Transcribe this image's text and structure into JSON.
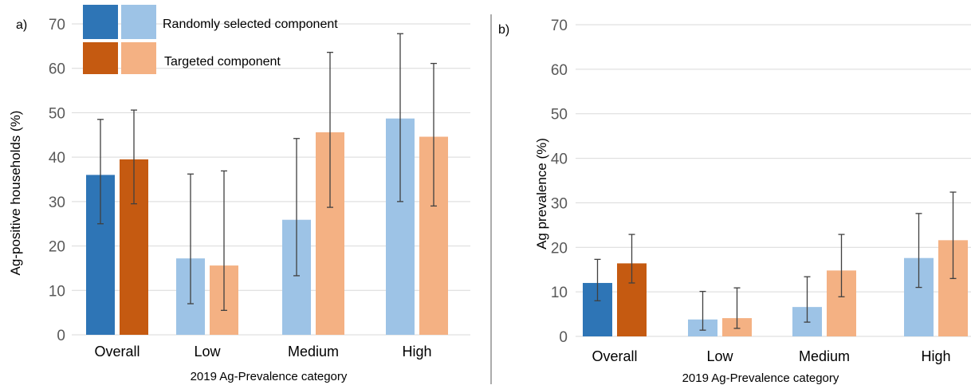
{
  "panels": [
    {
      "label": "a)"
    },
    {
      "label": "b)"
    }
  ],
  "legend": {
    "entries": [
      {
        "text": "Randomly selected component",
        "dark": "#2e75b6",
        "light": "#9dc3e6"
      },
      {
        "text": "Targeted component",
        "dark": "#c55a11",
        "light": "#f4b183"
      }
    ]
  },
  "colors": {
    "random_dark": "#2e75b6",
    "random_light": "#9dc3e6",
    "targeted_dark": "#c55a11",
    "targeted_light": "#f4b183",
    "grid": "#d9d9d9",
    "axis_text": "#595959",
    "error_bar": "#404040"
  },
  "chart_data": [
    {
      "type": "bar",
      "panel": "a)",
      "title": "",
      "xlabel": "2019 Ag-Prevalence category",
      "ylabel": "Ag-positive households (%)",
      "categories": [
        "Overall",
        "Low",
        "Medium",
        "High"
      ],
      "ylim": [
        0,
        70
      ],
      "yticks": [
        0,
        10,
        20,
        30,
        40,
        50,
        60,
        70
      ],
      "grid": true,
      "legend_position": "top-left",
      "series": [
        {
          "name": "Randomly selected component",
          "values": [
            36,
            17.2,
            25.9,
            48.7
          ],
          "err_low": [
            25,
            7,
            13.3,
            30
          ],
          "err_high": [
            48.5,
            36.2,
            44.2,
            67.8
          ]
        },
        {
          "name": "Targeted component",
          "values": [
            39.5,
            15.6,
            45.6,
            44.6
          ],
          "err_low": [
            29.5,
            5.5,
            28.7,
            29
          ],
          "err_high": [
            50.6,
            36.9,
            63.6,
            61.1
          ]
        }
      ]
    },
    {
      "type": "bar",
      "panel": "b)",
      "title": "",
      "xlabel": "2019 Ag-Prevalence category",
      "ylabel": "Ag prevalence (%)",
      "categories": [
        "Overall",
        "Low",
        "Medium",
        "High"
      ],
      "ylim": [
        0,
        70
      ],
      "yticks": [
        0,
        10,
        20,
        30,
        40,
        50,
        60,
        70
      ],
      "grid": true,
      "series": [
        {
          "name": "Randomly selected component",
          "values": [
            12,
            3.8,
            6.6,
            17.6
          ],
          "err_low": [
            8,
            1.4,
            3.2,
            11
          ],
          "err_high": [
            17.3,
            10.1,
            13.4,
            27.6
          ]
        },
        {
          "name": "Targeted component",
          "values": [
            16.4,
            4.1,
            14.8,
            21.6
          ],
          "err_low": [
            12,
            1.8,
            8.9,
            13
          ],
          "err_high": [
            22.9,
            10.9,
            22.9,
            32.4
          ]
        }
      ]
    }
  ]
}
